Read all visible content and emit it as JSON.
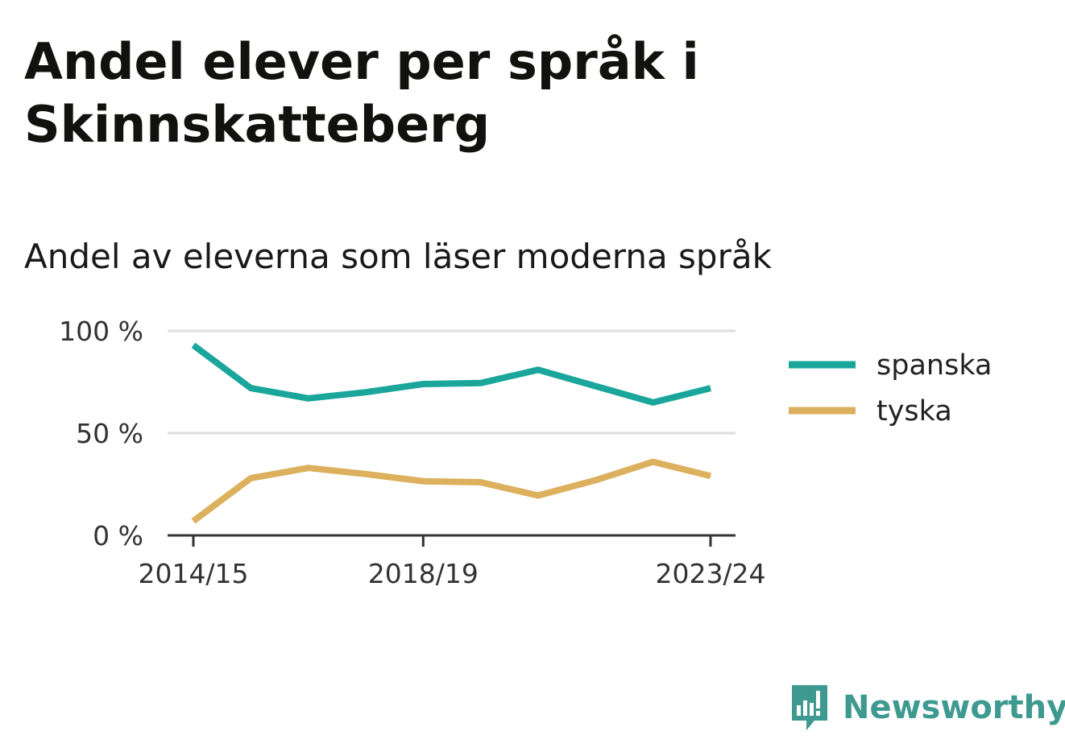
{
  "title": "Andel elever per språk i Skinnskatteberg",
  "subtitle": "Andel av eleverna som läser moderna språk",
  "brand": {
    "name": "Newsworthy",
    "icon": "newsworthy-logo-icon",
    "color": "#3e9a90"
  },
  "chart_data": {
    "type": "line",
    "x": [
      "2014/15",
      "2015/16",
      "2016/17",
      "2017/18",
      "2018/19",
      "2019/20",
      "2020/21",
      "2021/22",
      "2022/23",
      "2023/24"
    ],
    "x_tick_labels": [
      "2014/15",
      "2018/19",
      "2023/24"
    ],
    "y_tick_labels": [
      "100 %",
      "50 %",
      "0 %"
    ],
    "y_ticks": [
      100,
      50,
      0
    ],
    "ylim": [
      0,
      100
    ],
    "grid": true,
    "legend_position": "right",
    "series": [
      {
        "name": "spanska",
        "color": "#1aa69b",
        "values": [
          93,
          72,
          67,
          70,
          74,
          74.5,
          81,
          73,
          65,
          72
        ]
      },
      {
        "name": "tyska",
        "color": "#dcb05d",
        "values": [
          7,
          28,
          33,
          30,
          26.5,
          26,
          19.5,
          27,
          36,
          29
        ]
      }
    ]
  }
}
